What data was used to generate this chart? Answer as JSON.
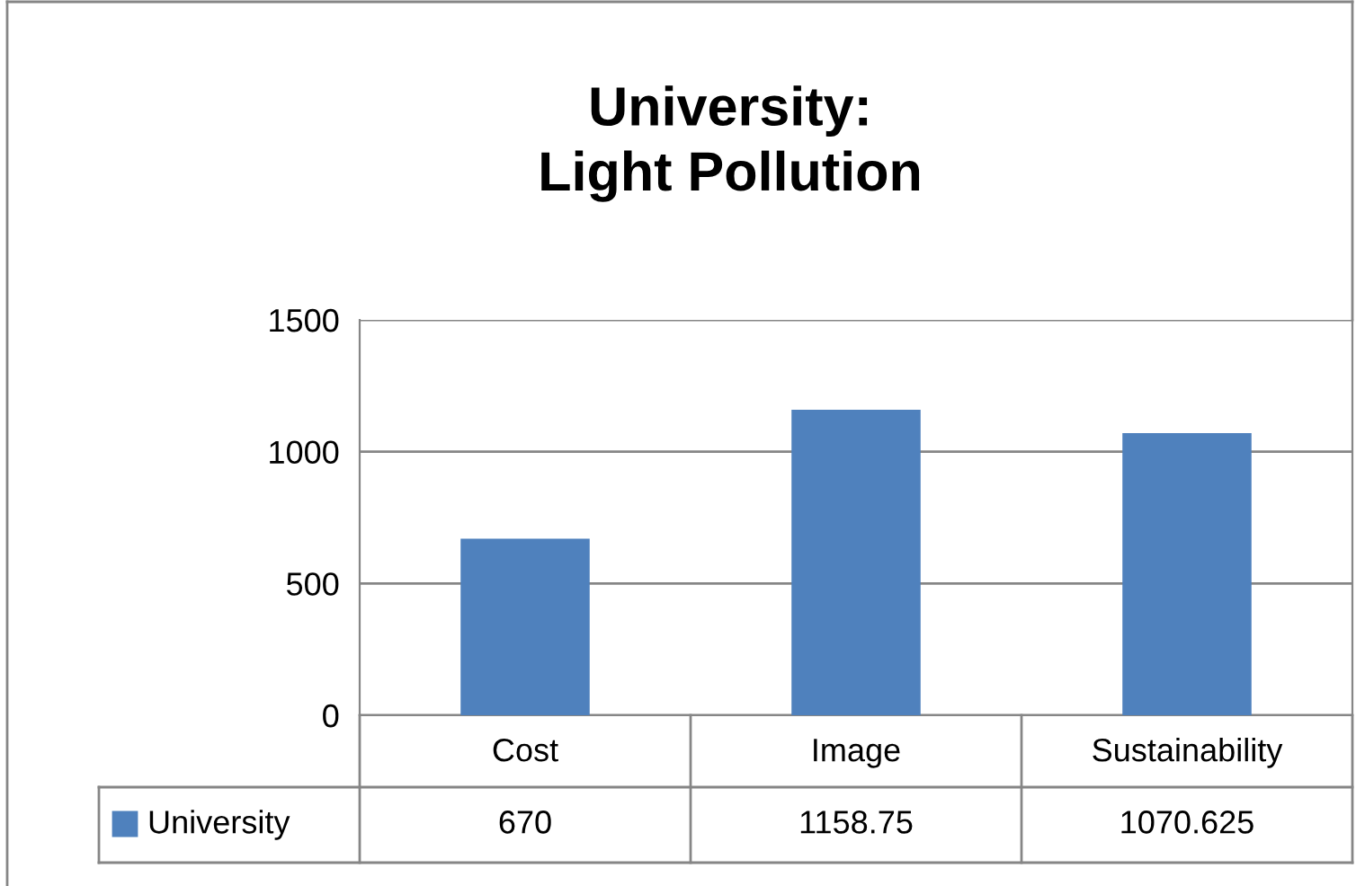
{
  "chart_data": {
    "type": "bar",
    "title": "University:\nLight Pollution",
    "categories": [
      "Cost",
      "Image",
      "Sustainability"
    ],
    "series": [
      {
        "name": "University",
        "color": "#4f81bd",
        "values": [
          670,
          1158.75,
          1070.625
        ]
      }
    ],
    "ylim": [
      0,
      1500
    ],
    "yticks": [
      0,
      500,
      1000,
      1500
    ],
    "grid": "y",
    "data_labels": true,
    "legend": "bottom"
  }
}
